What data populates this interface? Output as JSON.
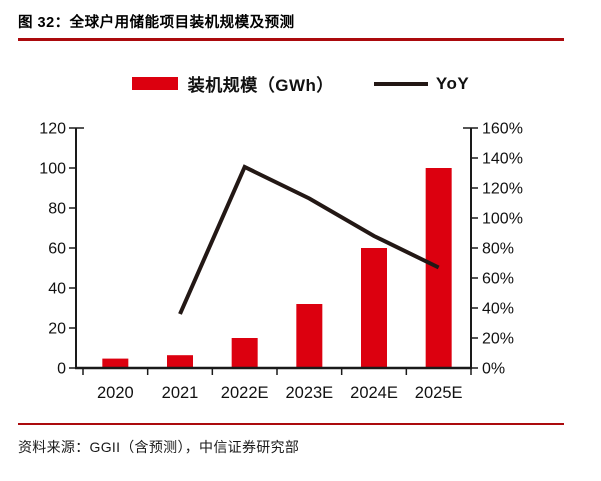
{
  "header": {
    "title": "图 32：全球户用储能项目装机规模及预测"
  },
  "legend": {
    "bar_label": "装机规模（GWh）",
    "line_label": "YoY"
  },
  "chart_data": {
    "type": "bar",
    "subtype": "bar+line combo",
    "title": "全球户用储能项目装机规模及预测",
    "categories": [
      "2020",
      "2021",
      "2022E",
      "2023E",
      "2024E",
      "2025E"
    ],
    "series": [
      {
        "name": "装机规模（GWh）",
        "type": "bar",
        "axis": "left",
        "unit": "GWh",
        "values": [
          4.7,
          6.4,
          15,
          32,
          60,
          100
        ],
        "color": "#dc000f"
      },
      {
        "name": "YoY",
        "type": "line",
        "axis": "right",
        "unit": "%",
        "values": [
          null,
          36,
          134,
          113,
          88,
          67
        ],
        "color": "#231815"
      }
    ],
    "left_axis": {
      "min": 0,
      "max": 120,
      "step": 20,
      "tick_labels": [
        "0",
        "20",
        "40",
        "60",
        "80",
        "100",
        "120"
      ]
    },
    "right_axis": {
      "min": 0,
      "max": 160,
      "step": 20,
      "tick_labels": [
        "0%",
        "20%",
        "40%",
        "60%",
        "80%",
        "100%",
        "120%",
        "140%",
        "160%"
      ]
    },
    "grid": false,
    "legend_position": "top"
  },
  "footer": {
    "source": "资料来源：GGII（含预测），中信证券研究部"
  },
  "colors": {
    "accent_rule": "#ab0a0d",
    "bar_red": "#dc000f",
    "line_dark": "#231815",
    "axis_dark": "#1a1a1a"
  }
}
